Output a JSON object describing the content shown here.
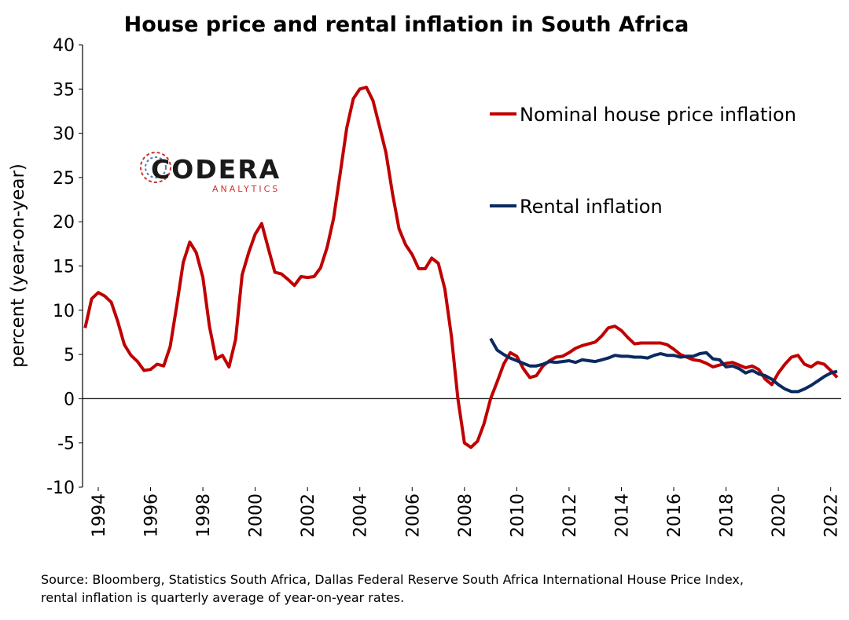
{
  "chart_data": {
    "type": "line",
    "title": "House price and rental inflation in South Africa",
    "y_label": "percent (year-on-year)",
    "logo": {
      "name": "CODERA",
      "tagline": "ANALYTICS"
    },
    "source": [
      "Source: Bloomberg, Statistics South Africa, Dallas Federal Reserve South Africa International House Price Index,",
      "rental inflation is quarterly average of year-on-year rates."
    ],
    "xlim": [
      1993.4,
      2022.4
    ],
    "xticks": [
      1994,
      1996,
      1998,
      2000,
      2002,
      2004,
      2006,
      2008,
      2010,
      2012,
      2014,
      2016,
      2018,
      2020,
      2022
    ],
    "ylim": [
      -10,
      40
    ],
    "yticks": [
      -10,
      -5,
      0,
      5,
      10,
      15,
      20,
      25,
      30,
      35,
      40
    ],
    "grid": false,
    "series": [
      {
        "name": "Nominal house price inflation",
        "color": "#c00000",
        "x": [
          1993.5,
          1993.75,
          1994,
          1994.25,
          1994.5,
          1994.75,
          1995,
          1995.25,
          1995.5,
          1995.75,
          1996,
          1996.25,
          1996.5,
          1996.75,
          1997,
          1997.25,
          1997.5,
          1997.75,
          1998,
          1998.25,
          1998.5,
          1998.75,
          1999,
          1999.25,
          1999.5,
          1999.75,
          2000,
          2000.25,
          2000.5,
          2000.75,
          2001,
          2001.25,
          2001.5,
          2001.75,
          2002,
          2002.25,
          2002.5,
          2002.75,
          2003,
          2003.25,
          2003.5,
          2003.75,
          2004,
          2004.25,
          2004.5,
          2004.75,
          2005,
          2005.25,
          2005.5,
          2005.75,
          2006,
          2006.25,
          2006.5,
          2006.75,
          2007,
          2007.25,
          2007.5,
          2007.75,
          2008,
          2008.25,
          2008.5,
          2008.75,
          2009,
          2009.25,
          2009.5,
          2009.75,
          2010,
          2010.25,
          2010.5,
          2010.75,
          2011,
          2011.25,
          2011.5,
          2011.75,
          2012,
          2012.25,
          2012.5,
          2012.75,
          2013,
          2013.25,
          2013.5,
          2013.75,
          2014,
          2014.25,
          2014.5,
          2014.75,
          2015,
          2015.25,
          2015.5,
          2015.75,
          2016,
          2016.25,
          2016.5,
          2016.75,
          2017,
          2017.25,
          2017.5,
          2017.75,
          2018,
          2018.25,
          2018.5,
          2018.75,
          2019,
          2019.25,
          2019.5,
          2019.75,
          2020,
          2020.25,
          2020.5,
          2020.75,
          2021,
          2021.25,
          2021.5,
          2021.75,
          2022,
          2022.25
        ],
        "values": [
          8,
          11.3,
          12,
          11.6,
          10.9,
          8.7,
          6.1,
          4.9,
          4.2,
          3.2,
          3.3,
          3.9,
          3.7,
          5.9,
          10.5,
          15.4,
          17.7,
          16.5,
          13.7,
          8.2,
          4.5,
          4.9,
          3.6,
          6.7,
          14,
          16.5,
          18.6,
          19.8,
          17,
          14.3,
          14.1,
          13.5,
          12.8,
          13.8,
          13.7,
          13.8,
          14.8,
          17.1,
          20.4,
          25.5,
          30.6,
          33.9,
          35,
          35.2,
          33.7,
          30.8,
          27.8,
          23.2,
          19.2,
          17.4,
          16.3,
          14.7,
          14.7,
          15.9,
          15.3,
          12.4,
          7.1,
          0,
          -5,
          -5.5,
          -4.8,
          -2.8,
          0,
          1.9,
          3.9,
          5.2,
          4.8,
          3.4,
          2.4,
          2.6,
          3.7,
          4.3,
          4.7,
          4.8,
          5.2,
          5.7,
          6,
          6.2,
          6.4,
          7.1,
          8,
          8.2,
          7.7,
          6.9,
          6.2,
          6.3,
          6.3,
          6.3,
          6.3,
          6.1,
          5.6,
          5,
          4.7,
          4.4,
          4.3,
          4,
          3.6,
          3.8,
          4,
          4.1,
          3.8,
          3.5,
          3.7,
          3.3,
          2.2,
          1.6,
          2.9,
          3.9,
          4.7,
          4.9,
          3.9,
          3.6,
          4.1,
          3.9,
          3.2,
          2.4
        ]
      },
      {
        "name": "Rental inflation",
        "color": "#0a2a60",
        "x": [
          2009,
          2009.25,
          2009.5,
          2009.75,
          2010,
          2010.25,
          2010.5,
          2010.75,
          2011,
          2011.25,
          2011.5,
          2011.75,
          2012,
          2012.25,
          2012.5,
          2012.75,
          2013,
          2013.25,
          2013.5,
          2013.75,
          2014,
          2014.25,
          2014.5,
          2014.75,
          2015,
          2015.25,
          2015.5,
          2015.75,
          2016,
          2016.25,
          2016.5,
          2016.75,
          2017,
          2017.25,
          2017.5,
          2017.75,
          2018,
          2018.25,
          2018.5,
          2018.75,
          2019,
          2019.25,
          2019.5,
          2019.75,
          2020,
          2020.25,
          2020.5,
          2020.75,
          2021,
          2021.25,
          2021.5,
          2021.75,
          2022,
          2022.25
        ],
        "values": [
          6.8,
          5.5,
          5,
          4.6,
          4.3,
          4,
          3.7,
          3.7,
          3.9,
          4.2,
          4.1,
          4.2,
          4.3,
          4.1,
          4.4,
          4.3,
          4.2,
          4.4,
          4.6,
          4.9,
          4.8,
          4.8,
          4.7,
          4.7,
          4.6,
          4.9,
          5.1,
          4.9,
          4.9,
          4.7,
          4.8,
          4.8,
          5.1,
          5.2,
          4.5,
          4.4,
          3.6,
          3.7,
          3.4,
          2.9,
          3.2,
          2.8,
          2.6,
          2.2,
          1.6,
          1.1,
          0.8,
          0.8,
          1.1,
          1.5,
          2,
          2.5,
          2.9,
          3.1
        ]
      }
    ]
  }
}
